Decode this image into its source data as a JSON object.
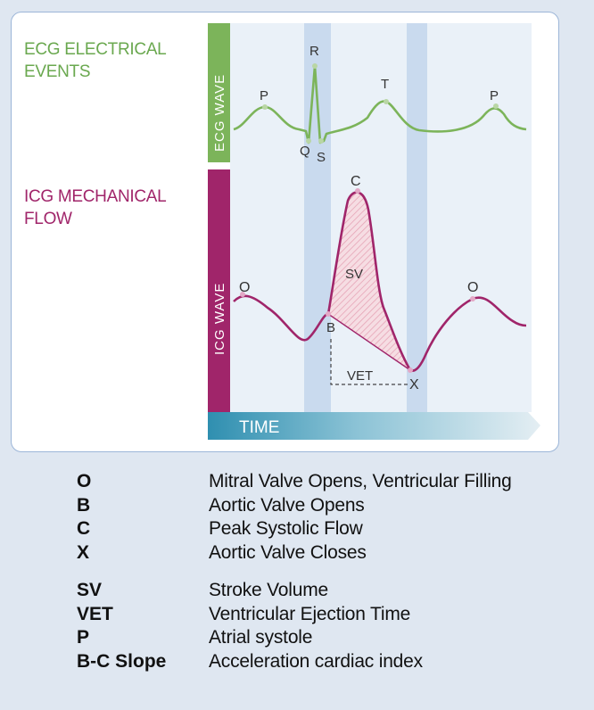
{
  "panel": {
    "ecg_label_line1": "ECG ELECTRICAL",
    "ecg_label_line2": "EVENTS",
    "icg_label_line1": "ICG MECHANICAL",
    "icg_label_line2": "FLOW",
    "ecg_bar_text": "ECG WAVE",
    "icg_bar_text": "ICG WAVE",
    "time_text": "TIME"
  },
  "points": {
    "ecg": {
      "p1": "P",
      "r": "R",
      "q": "Q",
      "s": "S",
      "t": "T",
      "p2": "P"
    },
    "icg": {
      "o1": "O",
      "b": "B",
      "c": "C",
      "sv": "SV",
      "vet": "VET",
      "x": "X",
      "o2": "O"
    }
  },
  "colors": {
    "ecg": "#7cb45a",
    "icg": "#a0256a",
    "band": "#c9daee",
    "time": "#3d9bb7",
    "sv_fill": "#f1c9d2"
  },
  "legend": [
    {
      "term": "O",
      "def": "Mitral Valve Opens, Ventricular Filling"
    },
    {
      "term": "B",
      "def": "Aortic Valve Opens"
    },
    {
      "term": "C",
      "def": "Peak Systolic Flow"
    },
    {
      "term": "X",
      "def": "Aortic Valve Closes"
    },
    {
      "term": "SV",
      "def": "Stroke Volume"
    },
    {
      "term": "VET",
      "def": "Ventricular Ejection Time"
    },
    {
      "term": "P",
      "def": "Atrial systole"
    },
    {
      "term": "B-C Slope",
      "def": "Acceleration cardiac index"
    }
  ]
}
